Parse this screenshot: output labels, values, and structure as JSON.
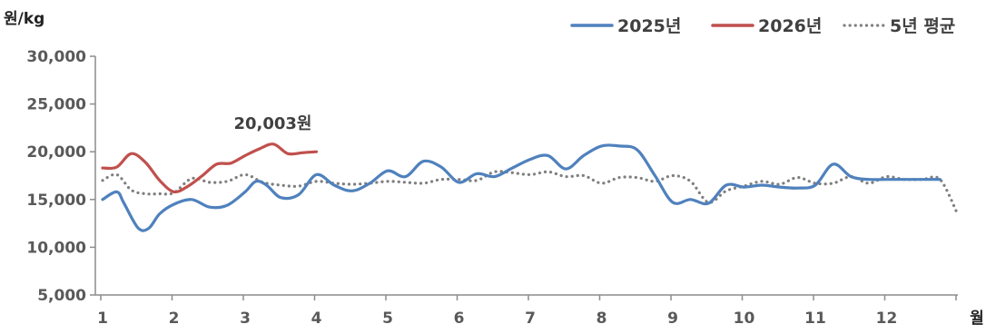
{
  "chart_data": {
    "type": "line",
    "title": "",
    "ylabel": "원/kg",
    "xlabel": "월",
    "ylim": [
      5000,
      30000
    ],
    "xlim": [
      1,
      13
    ],
    "y_ticks": [
      "5,000",
      "10,000",
      "15,000",
      "20,000",
      "25,000",
      "30,000"
    ],
    "y_tick_values": [
      5000,
      10000,
      15000,
      20000,
      25000,
      30000
    ],
    "x_ticks": [
      "1",
      "2",
      "3",
      "4",
      "5",
      "6",
      "7",
      "8",
      "9",
      "10",
      "11",
      "12"
    ],
    "x_tick_values": [
      1,
      2,
      3,
      4,
      5,
      6,
      7,
      8,
      9,
      10,
      11,
      12
    ],
    "grid": false,
    "legend_position": "top-right",
    "annotation": {
      "text": "20,003원",
      "x": 3.35,
      "y": 21500
    },
    "series": [
      {
        "name": "2025년",
        "color": "#4f81bd",
        "style": "solid",
        "x": [
          1.0,
          1.2,
          1.3,
          1.5,
          1.65,
          1.8,
          2.0,
          2.25,
          2.5,
          2.75,
          3.0,
          3.15,
          3.3,
          3.5,
          3.75,
          4.0,
          4.25,
          4.5,
          4.75,
          5.0,
          5.25,
          5.5,
          5.75,
          6.0,
          6.25,
          6.5,
          6.75,
          7.0,
          7.25,
          7.5,
          7.75,
          8.0,
          8.25,
          8.5,
          8.75,
          9.0,
          9.25,
          9.5,
          9.75,
          10.0,
          10.25,
          10.5,
          10.75,
          11.0,
          11.25,
          11.5,
          11.75,
          12.0,
          12.25,
          12.5,
          12.75
        ],
        "values": [
          15000,
          15800,
          14600,
          12000,
          12000,
          13500,
          14500,
          15000,
          14200,
          14400,
          15800,
          16900,
          16500,
          15200,
          15500,
          17600,
          16500,
          15900,
          16700,
          18000,
          17400,
          19000,
          18400,
          16800,
          17700,
          17400,
          18300,
          19200,
          19600,
          18200,
          19600,
          20600,
          20600,
          20200,
          17500,
          14700,
          15000,
          14600,
          16500,
          16300,
          16500,
          16300,
          16200,
          16500,
          18700,
          17400,
          17100,
          17100,
          17100,
          17100,
          17100
        ]
      },
      {
        "name": "2026년",
        "color": "#c0504d",
        "style": "solid",
        "x": [
          1.0,
          1.2,
          1.4,
          1.6,
          1.8,
          2.0,
          2.2,
          2.4,
          2.6,
          2.8,
          3.0,
          3.2,
          3.4,
          3.6,
          3.8,
          4.0
        ],
        "values": [
          18300,
          18400,
          19800,
          18900,
          17000,
          15800,
          16400,
          17500,
          18700,
          18800,
          19600,
          20300,
          20800,
          19800,
          19900,
          20003
        ]
      },
      {
        "name": "5년 평균",
        "color": "#7f7f7f",
        "style": "dotted",
        "x": [
          1.0,
          1.2,
          1.4,
          1.6,
          1.8,
          2.0,
          2.25,
          2.5,
          2.75,
          3.0,
          3.25,
          3.5,
          3.75,
          4.0,
          4.25,
          4.5,
          4.75,
          5.0,
          5.25,
          5.5,
          5.75,
          6.0,
          6.25,
          6.5,
          6.75,
          7.0,
          7.25,
          7.5,
          7.75,
          8.0,
          8.25,
          8.5,
          8.75,
          9.0,
          9.25,
          9.5,
          9.75,
          10.0,
          10.25,
          10.5,
          10.75,
          11.0,
          11.25,
          11.5,
          11.75,
          12.0,
          12.25,
          12.5,
          12.75,
          13.0
        ],
        "values": [
          17000,
          17600,
          16000,
          15600,
          15600,
          15700,
          17200,
          16800,
          16900,
          17600,
          16800,
          16500,
          16400,
          16900,
          16700,
          16600,
          16700,
          16900,
          16800,
          16700,
          17100,
          17100,
          17000,
          17900,
          17800,
          17600,
          17900,
          17400,
          17500,
          16700,
          17300,
          17300,
          16900,
          17500,
          16900,
          14700,
          15900,
          16400,
          16900,
          16600,
          17300,
          16700,
          16700,
          17400,
          16700,
          17400,
          17100,
          17100,
          17100,
          13400
        ]
      }
    ]
  }
}
